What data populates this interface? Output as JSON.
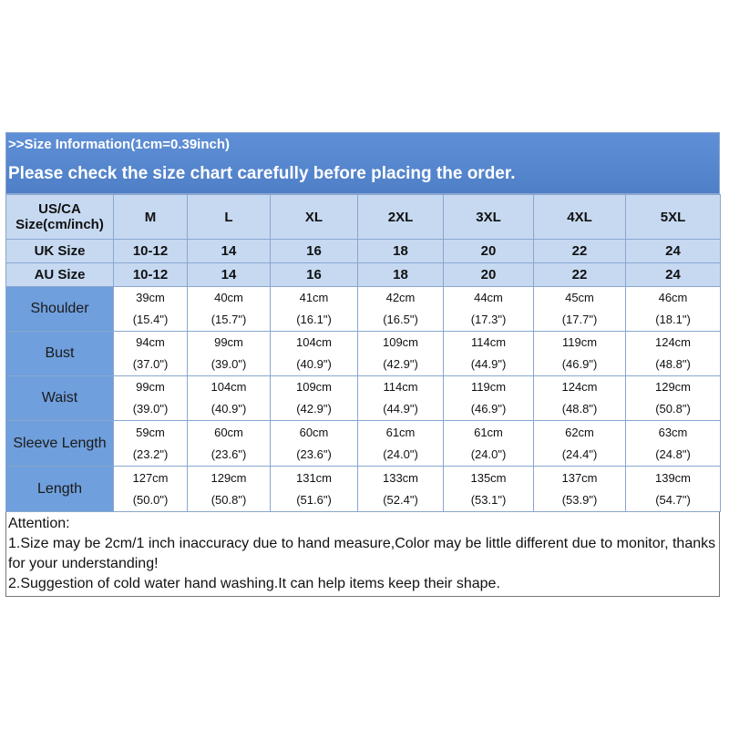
{
  "header": {
    "line1": ">>Size Information(1cm=0.39inch)",
    "line2": "Please check the size chart carefully before placing the order."
  },
  "table": {
    "size_label": [
      "US/CA",
      "Size(cm/inch)"
    ],
    "sizes": [
      "M",
      "L",
      "XL",
      "2XL",
      "3XL",
      "4XL",
      "5XL"
    ],
    "uk": {
      "label": "UK Size",
      "values": [
        "10-12",
        "14",
        "16",
        "18",
        "20",
        "22",
        "24"
      ]
    },
    "au": {
      "label": "AU Size",
      "values": [
        "10-12",
        "14",
        "16",
        "18",
        "20",
        "22",
        "24"
      ]
    },
    "rows": [
      {
        "label": "Shoulder",
        "cm": [
          "39cm",
          "40cm",
          "41cm",
          "42cm",
          "44cm",
          "45cm",
          "46cm"
        ],
        "inch": [
          "(15.4\")",
          "(15.7\")",
          "(16.1\")",
          "(16.5\")",
          "(17.3\")",
          "(17.7\")",
          "(18.1\")"
        ]
      },
      {
        "label": "Bust",
        "cm": [
          "94cm",
          "99cm",
          "104cm",
          "109cm",
          "114cm",
          "119cm",
          "124cm"
        ],
        "inch": [
          "(37.0\")",
          "(39.0\")",
          "(40.9\")",
          "(42.9\")",
          "(44.9\")",
          "(46.9\")",
          "(48.8\")"
        ]
      },
      {
        "label": "Waist",
        "cm": [
          "99cm",
          "104cm",
          "109cm",
          "114cm",
          "119cm",
          "124cm",
          "129cm"
        ],
        "inch": [
          "(39.0\")",
          "(40.9\")",
          "(42.9\")",
          "(44.9\")",
          "(46.9\")",
          "(48.8\")",
          "(50.8\")"
        ]
      },
      {
        "label": "Sleeve Length",
        "cm": [
          "59cm",
          "60cm",
          "60cm",
          "61cm",
          "61cm",
          "62cm",
          "63cm"
        ],
        "inch": [
          "(23.2\")",
          "(23.6\")",
          "(23.6\")",
          "(24.0\")",
          "(24.0\")",
          "(24.4\")",
          "(24.8\")"
        ]
      },
      {
        "label": "Length",
        "cm": [
          "127cm",
          "129cm",
          "131cm",
          "133cm",
          "135cm",
          "137cm",
          "139cm"
        ],
        "inch": [
          "(50.0\")",
          "(50.8\")",
          "(51.6\")",
          "(52.4\")",
          "(53.1\")",
          "(53.9\")",
          "(54.7\")"
        ]
      }
    ]
  },
  "notes": [
    "Attention:",
    "1.Size may be 2cm/1 inch inaccuracy due to hand measure,Color may be little different due to monitor, thanks for your understanding!",
    "2.Suggestion of cold water hand washing.It can help items keep their shape."
  ]
}
